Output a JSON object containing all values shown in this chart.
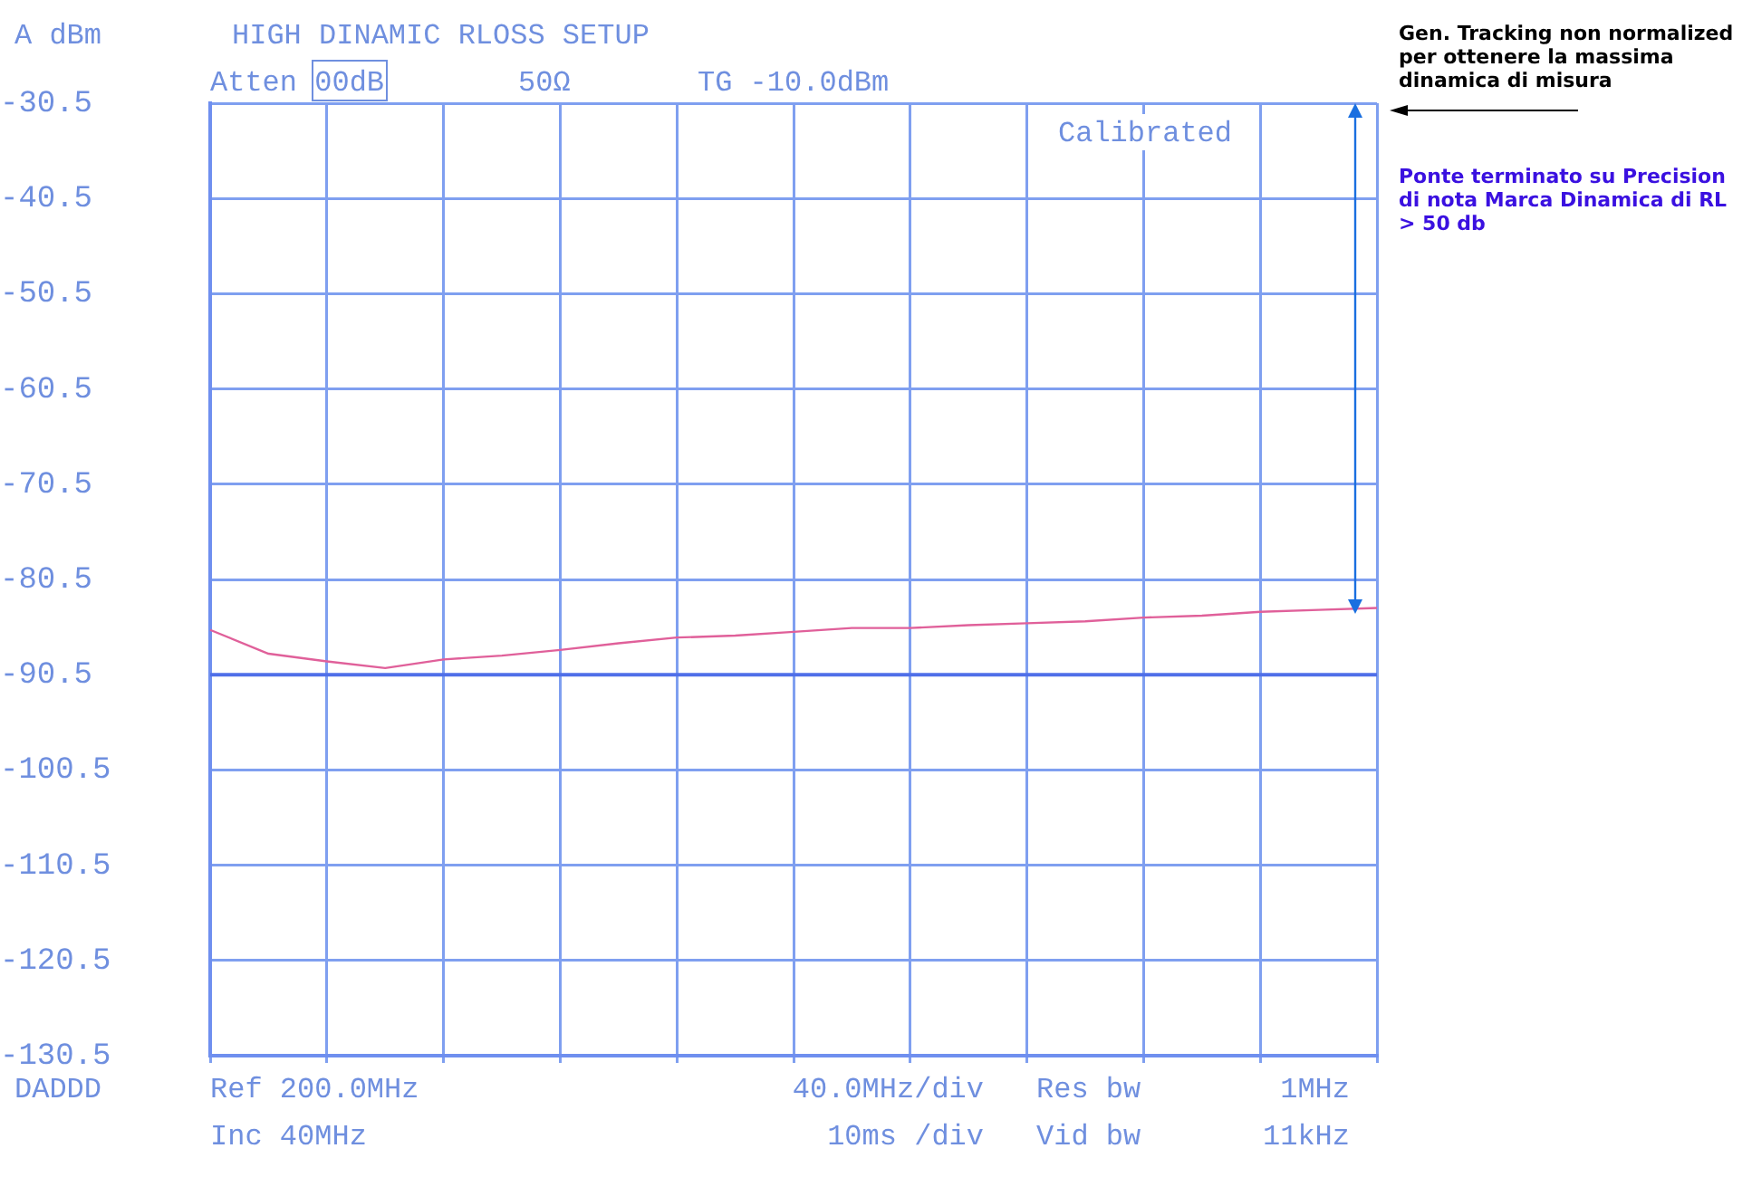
{
  "chart_data": {
    "type": "line",
    "title": "HIGH DINAMIC RLOSS SETUP",
    "ylabel": "A dBm",
    "categories": [
      null,
      null,
      null,
      null,
      null,
      null,
      null,
      null,
      null,
      null,
      null,
      null,
      null,
      null,
      null,
      null,
      null,
      null,
      null,
      null,
      null
    ],
    "series": [
      {
        "color": "#e0609a",
        "values": [
          -85.8,
          -88.3,
          -89.1,
          -89.8,
          -88.9,
          -88.5,
          -87.9,
          -87.2,
          -86.6,
          -86.4,
          -86.0,
          -85.6,
          -85.6,
          -85.3,
          -85.1,
          -84.9,
          -84.5,
          -84.3,
          -83.9,
          -83.7,
          -83.5
        ]
      }
    ],
    "ylim": [
      -130.5,
      -30.5
    ],
    "yticks": [
      -130.5,
      -120.5,
      -110.5,
      -100.5,
      -90.5,
      -80.5,
      -70.5,
      -60.5,
      -50.5,
      -40.5,
      -30.5
    ],
    "tick_labels": "y",
    "grid": true,
    "legend": false,
    "marker": "none",
    "line_style": "solid",
    "ref_lines": [
      {
        "axis": "y",
        "value": -90.5,
        "line_style": "solid",
        "color": "#4f6fe8"
      }
    ],
    "annotations": [
      "Atten 00dB",
      "50Ω",
      "TG -10.0dBm",
      "Calibrated",
      "DADDD",
      "Ref 200.0MHz",
      "Inc 40MHz",
      "40.0MHz/div",
      "10ms /div",
      "Res bw",
      "1MHz",
      "Vid bw",
      "11kHz",
      "Gen. Tracking non normalized per ottenere la massima dinamica di misura",
      "Ponte terminato su Precision di nota Marca Dinamica di RL > 50 db"
    ]
  }
}
